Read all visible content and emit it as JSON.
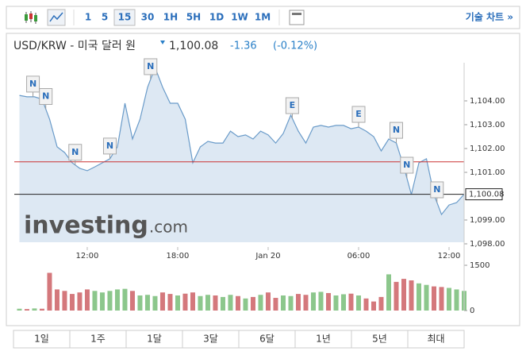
{
  "toolbar": {
    "intervals": [
      "1",
      "5",
      "15",
      "30",
      "1H",
      "5H",
      "1D",
      "1W",
      "1M"
    ],
    "selected": 2,
    "advanced_link": "기술 차트 »"
  },
  "header": {
    "title": "USD/KRW - 미국 달러 원",
    "price": "1,100.08",
    "change": "-1.36",
    "change_pct": "(-0.12%)"
  },
  "chart_data": {
    "type": "line",
    "x": [
      7.5,
      8,
      8.5,
      9,
      9.5,
      10,
      10.5,
      11,
      11.5,
      12,
      12.5,
      13,
      13.5,
      14,
      14.5,
      15,
      15.5,
      16,
      16.5,
      17,
      17.5,
      18,
      18.5,
      19,
      19.5,
      20,
      20.5,
      21,
      21.5,
      22,
      22.5,
      23,
      23.5,
      24,
      24.5,
      25,
      25.5,
      26,
      26.5,
      27,
      27.5,
      28,
      28.5,
      29,
      29.5,
      30,
      30.5,
      31,
      31.5,
      32,
      32.5,
      33,
      33.5,
      34,
      34.5,
      35,
      35.5,
      36,
      36.5,
      37
    ],
    "series": [
      {
        "name": "USD/KRW",
        "color": "#6a9bc9",
        "values": [
          1104.23,
          1104.17,
          1104.17,
          1104.07,
          1103.23,
          1102.07,
          1101.83,
          1101.4,
          1101.17,
          1101.07,
          1101.23,
          1101.4,
          1101.57,
          1102.07,
          1103.9,
          1102.4,
          1103.23,
          1104.57,
          1105.4,
          1104.57,
          1103.9,
          1103.9,
          1103.23,
          1101.4,
          1102.07,
          1102.3,
          1102.23,
          1102.23,
          1102.73,
          1102.5,
          1102.57,
          1102.4,
          1102.73,
          1102.57,
          1102.23,
          1102.63,
          1103.4,
          1102.73,
          1102.23,
          1102.9,
          1102.97,
          1102.9,
          1102.97,
          1102.97,
          1102.83,
          1102.9,
          1102.73,
          1102.5,
          1101.9,
          1102.4,
          1102.23,
          1101.23,
          1100.07,
          1101.4,
          1101.57,
          1100.07,
          1099.23,
          1099.63,
          1099.73,
          1100.08
        ]
      },
      {
        "name": "Volume",
        "axis": "y2",
        "up_color": "#8cc78c",
        "down_color": "#d4787c",
        "values": [
          60,
          50,
          70,
          60,
          1250,
          700,
          650,
          550,
          600,
          700,
          650,
          600,
          650,
          700,
          720,
          650,
          500,
          520,
          480,
          600,
          550,
          500,
          560,
          600,
          480,
          520,
          500,
          450,
          520,
          480,
          400,
          450,
          520,
          600,
          420,
          500,
          480,
          550,
          520,
          600,
          620,
          580,
          500,
          540,
          560,
          500,
          400,
          300,
          450,
          1200,
          950,
          1050,
          1000,
          900,
          850,
          800,
          780,
          750,
          700,
          650
        ]
      }
    ],
    "xlim": [
      7.16,
      37
    ],
    "xticks": [
      {
        "value": 12,
        "label": "12:00"
      },
      {
        "value": 18,
        "label": "18:00"
      },
      {
        "value": 24,
        "label": "Jan 20"
      },
      {
        "value": 30,
        "label": "06:00"
      },
      {
        "value": 36,
        "label": "12:00"
      }
    ],
    "ylim": [
      1098,
      1105.6
    ],
    "yticks": [
      {
        "value": 1098,
        "label": "1,098.00"
      },
      {
        "value": 1099,
        "label": "1,099.00"
      },
      {
        "value": 1101,
        "label": "1,101.00"
      },
      {
        "value": 1102,
        "label": "1,102.00"
      },
      {
        "value": 1103,
        "label": "1,103.00"
      },
      {
        "value": 1104,
        "label": "1,104.00"
      }
    ],
    "y2lim": [
      0,
      1500
    ],
    "y2ticks": [
      0,
      1500
    ],
    "last_price": {
      "value": 1100.08,
      "label": "1,100.08"
    },
    "previous_close": 1101.44,
    "events": [
      {
        "x": 8.4,
        "label": "N"
      },
      {
        "x": 9.25,
        "label": "N"
      },
      {
        "x": 11.2,
        "label": "N"
      },
      {
        "x": 13.5,
        "label": "N"
      },
      {
        "x": 16.2,
        "label": "N"
      },
      {
        "x": 25.6,
        "label": "E"
      },
      {
        "x": 30,
        "label": "E"
      },
      {
        "x": 32.5,
        "label": "N"
      },
      {
        "x": 33.2,
        "label": "N"
      },
      {
        "x": 35.2,
        "label": "N"
      }
    ],
    "watermark": [
      "investing",
      ".com"
    ]
  },
  "range_buttons": [
    "1일",
    "1주",
    "1달",
    "3달",
    "6달",
    "1년",
    "5년",
    "최대"
  ]
}
